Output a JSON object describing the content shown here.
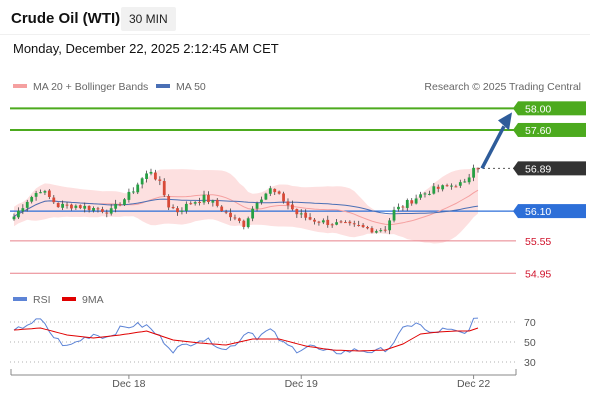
{
  "header": {
    "title": "Crude Oil (WTI)",
    "timeframe": "30 MIN",
    "datetime": "Monday, December 22, 2025 2:12:45 AM CET"
  },
  "credit": "Research © 2025 Trading Central",
  "colors": {
    "up_candle": "#26a044",
    "down_candle": "#d84a38",
    "bollinger_band": "#fde0e0",
    "ma20": "#f5a0a0",
    "ma50": "#4a6fb5",
    "resistance": "#4caa1e",
    "support": "#e8808a",
    "pivot": "#2d6fd8",
    "last_price": "#333333",
    "arrow": "#2e5c9a",
    "rsi": "#5d84d6",
    "rsi_ma": "#e00000"
  },
  "chart_data": [
    {
      "type": "candlestick",
      "xlabel": "",
      "ylabel": "",
      "x_ticks": [
        "Dec 18",
        "Dec 19",
        "Dec 22"
      ],
      "legend": [
        {
          "label": "MA 20 + Bollinger Bands",
          "color": "#f5a0a0"
        },
        {
          "label": "MA 50",
          "color": "#4a6fb5"
        }
      ],
      "legend_position": "top-left",
      "ylim": [
        54.9,
        58.08
      ],
      "levels": [
        {
          "label": "58.00",
          "value": 58.0,
          "kind": "resistance"
        },
        {
          "label": "57.60",
          "value": 57.6,
          "kind": "resistance"
        },
        {
          "label": "56.89",
          "value": 56.89,
          "kind": "last"
        },
        {
          "label": "56.10",
          "value": 56.1,
          "kind": "pivot"
        },
        {
          "label": "55.55",
          "value": 55.55,
          "kind": "support"
        },
        {
          "label": "54.95",
          "value": 54.95,
          "kind": "support"
        }
      ],
      "series_anchors": [
        {
          "index": 0,
          "close": 56.0
        },
        {
          "index": 3,
          "close": 56.3
        },
        {
          "index": 6,
          "close": 56.5
        },
        {
          "index": 10,
          "close": 56.2
        },
        {
          "index": 14,
          "close": 56.2
        },
        {
          "index": 18,
          "close": 56.15
        },
        {
          "index": 22,
          "close": 56.1
        },
        {
          "index": 26,
          "close": 56.4
        },
        {
          "index": 29,
          "close": 56.7
        },
        {
          "index": 31,
          "close": 56.85
        },
        {
          "index": 33,
          "close": 56.6
        },
        {
          "index": 35,
          "close": 56.2
        },
        {
          "index": 37,
          "close": 56.1
        },
        {
          "index": 40,
          "close": 56.25
        },
        {
          "index": 43,
          "close": 56.35
        },
        {
          "index": 46,
          "close": 56.2
        },
        {
          "index": 49,
          "close": 56.0
        },
        {
          "index": 52,
          "close": 55.85
        },
        {
          "index": 55,
          "close": 56.3
        },
        {
          "index": 58,
          "close": 56.5
        },
        {
          "index": 61,
          "close": 56.3
        },
        {
          "index": 64,
          "close": 56.05
        },
        {
          "index": 67,
          "close": 55.95
        },
        {
          "index": 70,
          "close": 55.9
        },
        {
          "index": 74,
          "close": 55.85
        },
        {
          "index": 78,
          "close": 55.8
        },
        {
          "index": 82,
          "close": 55.75
        },
        {
          "index": 84,
          "close": 55.78
        },
        {
          "index": 86,
          "close": 56.1
        },
        {
          "index": 89,
          "close": 56.25
        },
        {
          "index": 92,
          "close": 56.4
        },
        {
          "index": 95,
          "close": 56.5
        },
        {
          "index": 98,
          "close": 56.55
        },
        {
          "index": 100,
          "close": 56.6
        },
        {
          "index": 102,
          "close": 56.6
        },
        {
          "index": 104,
          "close": 56.9
        },
        {
          "index": 105,
          "close": 56.89
        }
      ],
      "candle_count": 106,
      "x_tick_indices": [
        26,
        65,
        104
      ]
    },
    {
      "type": "line",
      "xlabel": "",
      "ylabel": "",
      "legend": [
        {
          "label": "RSI",
          "color": "#5d84d6"
        },
        {
          "label": "9MA",
          "color": "#e00000"
        }
      ],
      "legend_position": "top-left",
      "ylim": [
        20,
        80
      ],
      "y_ticks": [
        {
          "label": "70",
          "value": 70
        },
        {
          "label": "50",
          "value": 50
        },
        {
          "label": "30",
          "value": 30
        }
      ],
      "rsi_anchors": [
        {
          "index": 0,
          "value": 60
        },
        {
          "index": 3,
          "value": 68
        },
        {
          "index": 6,
          "value": 72
        },
        {
          "index": 9,
          "value": 55
        },
        {
          "index": 12,
          "value": 45
        },
        {
          "index": 15,
          "value": 52
        },
        {
          "index": 18,
          "value": 58
        },
        {
          "index": 21,
          "value": 55
        },
        {
          "index": 24,
          "value": 63
        },
        {
          "index": 27,
          "value": 67
        },
        {
          "index": 30,
          "value": 66
        },
        {
          "index": 33,
          "value": 55
        },
        {
          "index": 36,
          "value": 42
        },
        {
          "index": 39,
          "value": 47
        },
        {
          "index": 42,
          "value": 53
        },
        {
          "index": 45,
          "value": 50
        },
        {
          "index": 48,
          "value": 42
        },
        {
          "index": 51,
          "value": 52
        },
        {
          "index": 53,
          "value": 62
        },
        {
          "index": 55,
          "value": 55
        },
        {
          "index": 58,
          "value": 62
        },
        {
          "index": 61,
          "value": 48
        },
        {
          "index": 64,
          "value": 42
        },
        {
          "index": 67,
          "value": 47
        },
        {
          "index": 70,
          "value": 40
        },
        {
          "index": 74,
          "value": 40
        },
        {
          "index": 78,
          "value": 42
        },
        {
          "index": 82,
          "value": 40
        },
        {
          "index": 85,
          "value": 45
        },
        {
          "index": 88,
          "value": 62
        },
        {
          "index": 91,
          "value": 70
        },
        {
          "index": 94,
          "value": 58
        },
        {
          "index": 97,
          "value": 62
        },
        {
          "index": 100,
          "value": 60
        },
        {
          "index": 102,
          "value": 58
        },
        {
          "index": 104,
          "value": 72
        },
        {
          "index": 105,
          "value": 71
        }
      ],
      "rsi_ma_anchors": [
        {
          "index": 0,
          "value": 62
        },
        {
          "index": 6,
          "value": 64
        },
        {
          "index": 12,
          "value": 57
        },
        {
          "index": 18,
          "value": 54
        },
        {
          "index": 24,
          "value": 57
        },
        {
          "index": 30,
          "value": 61
        },
        {
          "index": 36,
          "value": 52
        },
        {
          "index": 42,
          "value": 49
        },
        {
          "index": 48,
          "value": 47
        },
        {
          "index": 54,
          "value": 53
        },
        {
          "index": 60,
          "value": 53
        },
        {
          "index": 66,
          "value": 46
        },
        {
          "index": 72,
          "value": 42
        },
        {
          "index": 78,
          "value": 41
        },
        {
          "index": 84,
          "value": 42
        },
        {
          "index": 88,
          "value": 48
        },
        {
          "index": 92,
          "value": 58
        },
        {
          "index": 96,
          "value": 60
        },
        {
          "index": 100,
          "value": 61
        },
        {
          "index": 103,
          "value": 61
        },
        {
          "index": 105,
          "value": 64
        }
      ]
    }
  ]
}
